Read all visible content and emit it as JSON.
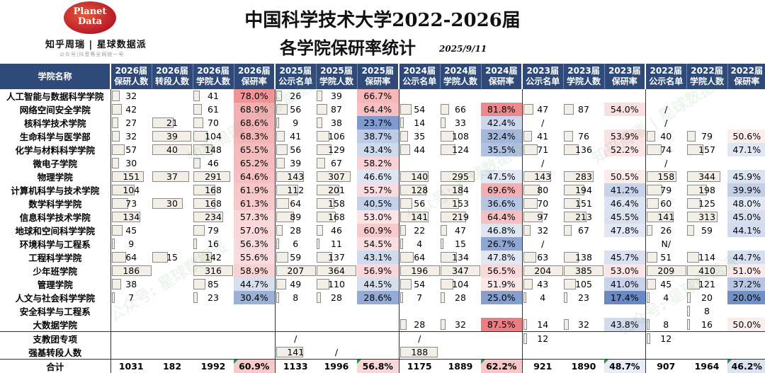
{
  "header": {
    "logo_line1": "Planet",
    "logo_line2": "Data",
    "subtitle": "知乎周瑞 | 星球数据派",
    "subtitle_small": "公众号|抖音等全网统一号",
    "title_line1": "中国科学技术大学2022-2026届",
    "title_line2": "各学院保研率统计",
    "date": "2025/9/11"
  },
  "columns": {
    "name": "学院名称",
    "groups": [
      {
        "cols": [
          "2026届 保研人数",
          "2026届 转段人数",
          "2026届 学院人数",
          "2026届 保研率"
        ]
      },
      {
        "cols": [
          "2025届 公示名单",
          "2025届 学院人数",
          "2025届 保研率"
        ]
      },
      {
        "cols": [
          "2024届 公示名单",
          "2024届 学院人数",
          "2024届 保研率"
        ]
      },
      {
        "cols": [
          "2023届 公示名单",
          "2023届 学院人数",
          "2023届 保研率"
        ]
      },
      {
        "cols": [
          "2022届 公示名单",
          "2022届 学院人数",
          "2022届 保研率"
        ]
      }
    ]
  },
  "colors": {
    "header_bg": "#2f4a78",
    "rate_high": "#e96a6f",
    "rate_low": "#5b7fc0",
    "bar_fill": "#f3efe6"
  },
  "chart_data": {
    "type": "table",
    "title": "中国科学技术大学2022-2026届 各学院保研率统计",
    "rows": [
      {
        "name": "人工智能与数据科学学院",
        "v": [
          "32",
          "",
          "41",
          "78.0%",
          "26",
          "39",
          "66.7%",
          "",
          "",
          "",
          "",
          "",
          "",
          "",
          "",
          ""
        ]
      },
      {
        "name": "网络空间安全学院",
        "v": [
          "42",
          "",
          "61",
          "68.9%",
          "56",
          "87",
          "64.4%",
          "54",
          "66",
          "81.8%",
          "47",
          "87",
          "54.0%",
          "/",
          "",
          ""
        ]
      },
      {
        "name": "核科学技术学院",
        "v": [
          "27",
          "21",
          "70",
          "68.6%",
          "9",
          "38",
          "23.7%",
          "14",
          "33",
          "42.4%",
          "/",
          "",
          "",
          "/",
          "",
          ""
        ]
      },
      {
        "name": "生命科学与医学部",
        "v": [
          "32",
          "39",
          "104",
          "68.3%",
          "41",
          "106",
          "38.7%",
          "35",
          "108",
          "32.4%",
          "41",
          "76",
          "53.9%",
          "40",
          "79",
          "50.6%"
        ]
      },
      {
        "name": "化学与材料科学学院",
        "v": [
          "57",
          "40",
          "148",
          "65.5%",
          "56",
          "129",
          "43.4%",
          "44",
          "124",
          "35.5%",
          "71",
          "136",
          "52.2%",
          "74",
          "157",
          "47.1%"
        ]
      },
      {
        "name": "微电子学院",
        "v": [
          "30",
          "",
          "46",
          "65.2%",
          "39",
          "67",
          "58.2%",
          "",
          "",
          "",
          "/",
          "",
          "",
          "/",
          "",
          ""
        ]
      },
      {
        "name": "物理学院",
        "v": [
          "151",
          "37",
          "291",
          "64.6%",
          "143",
          "307",
          "46.6%",
          "140",
          "295",
          "47.5%",
          "143",
          "283",
          "50.5%",
          "158",
          "344",
          "45.9%"
        ]
      },
      {
        "name": "计算机科学与技术学院",
        "v": [
          "104",
          "",
          "168",
          "61.9%",
          "112",
          "201",
          "55.7%",
          "128",
          "184",
          "69.6%",
          "80",
          "194",
          "41.2%",
          "79",
          "198",
          "39.9%"
        ]
      },
      {
        "name": "数学科学学院",
        "v": [
          "73",
          "30",
          "168",
          "61.3%",
          "64",
          "158",
          "40.5%",
          "56",
          "153",
          "36.6%",
          "70",
          "151",
          "46.4%",
          "60",
          "125",
          "48.0%"
        ]
      },
      {
        "name": "信息科学技术学院",
        "v": [
          "134",
          "",
          "234",
          "57.3%",
          "89",
          "168",
          "53.0%",
          "141",
          "219",
          "64.4%",
          "97",
          "213",
          "45.5%",
          "141",
          "313",
          "45.0%"
        ]
      },
      {
        "name": "地球和空间科学学院",
        "v": [
          "45",
          "",
          "79",
          "57.0%",
          "28",
          "46",
          "60.9%",
          "22",
          "47",
          "46.8%",
          "32",
          "67",
          "47.8%",
          "26",
          "59",
          "44.1%"
        ]
      },
      {
        "name": "环境科学与工程系",
        "v": [
          "9",
          "",
          "16",
          "56.3%",
          "6",
          "11",
          "54.5%",
          "4",
          "15",
          "26.7%",
          "/",
          "",
          "",
          "N/",
          "",
          ""
        ]
      },
      {
        "name": "工程科学学院",
        "v": [
          "64",
          "15",
          "142",
          "55.6%",
          "59",
          "137",
          "43.1%",
          "64",
          "134",
          "47.8%",
          "63",
          "138",
          "45.7%",
          "51",
          "114",
          "44.7%"
        ]
      },
      {
        "name": "少年班学院",
        "v": [
          "186",
          "",
          "316",
          "58.9%",
          "207",
          "364",
          "56.9%",
          "196",
          "347",
          "56.5%",
          "204",
          "385",
          "53.0%",
          "209",
          "410",
          "51.0%"
        ]
      },
      {
        "name": "管理学院",
        "v": [
          "38",
          "",
          "85",
          "44.7%",
          "49",
          "110",
          "44.5%",
          "54",
          "104",
          "51.9%",
          "43",
          "105",
          "41.0%",
          "45",
          "121",
          "37.2%"
        ]
      },
      {
        "name": "人文与社会科学学院",
        "v": [
          "7",
          "",
          "23",
          "30.4%",
          "8",
          "28",
          "28.6%",
          "7",
          "28",
          "25.0%",
          "4",
          "23",
          "17.4%",
          "4",
          "20",
          "20.0%"
        ]
      },
      {
        "name": "安全科学与工程系",
        "v": [
          "",
          "",
          "",
          "",
          "",
          "",
          "",
          "",
          "",
          "",
          "",
          "",
          "",
          "",
          "8",
          ""
        ]
      },
      {
        "name": "大数据学院",
        "v": [
          "",
          "",
          "",
          "",
          "",
          "",
          "",
          "28",
          "32",
          "87.5%",
          "14",
          "32",
          "43.8%",
          "8",
          "16",
          "50.0%"
        ]
      },
      {
        "name": "支教团专项",
        "v": [
          "",
          "",
          "",
          "",
          "/",
          "",
          "",
          "/",
          "",
          "",
          "12",
          "",
          "",
          "12",
          "",
          ""
        ]
      },
      {
        "name": "强基转段人数",
        "v": [
          "",
          "",
          "",
          "",
          "141",
          "/",
          "",
          "188",
          "",
          "",
          "",
          "",
          "",
          "",
          "",
          ""
        ]
      },
      {
        "name": "合计",
        "v": [
          "1031",
          "182",
          "1992",
          "60.9%",
          "1133",
          "1996",
          "56.8%",
          "1175",
          "1889",
          "62.2%",
          "921",
          "1890",
          "48.7%",
          "907",
          "1964",
          "46.2%"
        ]
      }
    ]
  }
}
